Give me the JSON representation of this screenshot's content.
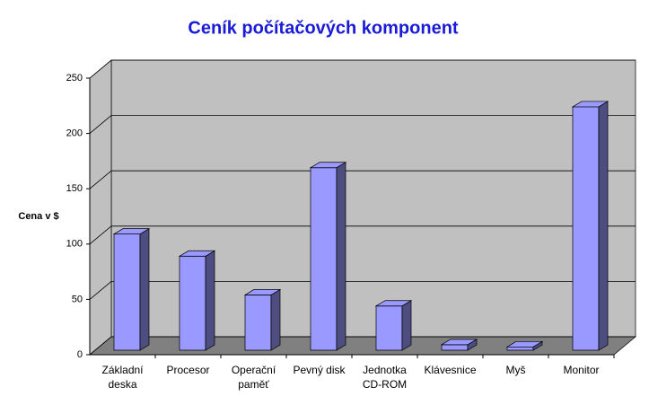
{
  "chart_data": {
    "type": "bar3d",
    "title": "Ceník počítačových komponent",
    "ylabel": "Cena v $",
    "categories": [
      "Základní\ndeska",
      "Procesor",
      "Operační\npaměť",
      "Pevný disk",
      "Jednotka\nCD-ROM",
      "Klávesnice",
      "Myš",
      "Monitor"
    ],
    "values": [
      105,
      85,
      50,
      165,
      40,
      5,
      3,
      220
    ],
    "color": "#9999ff",
    "ylim": [
      0,
      250
    ],
    "yticks": [
      0,
      50,
      100,
      150,
      200,
      250
    ],
    "grid": true
  }
}
